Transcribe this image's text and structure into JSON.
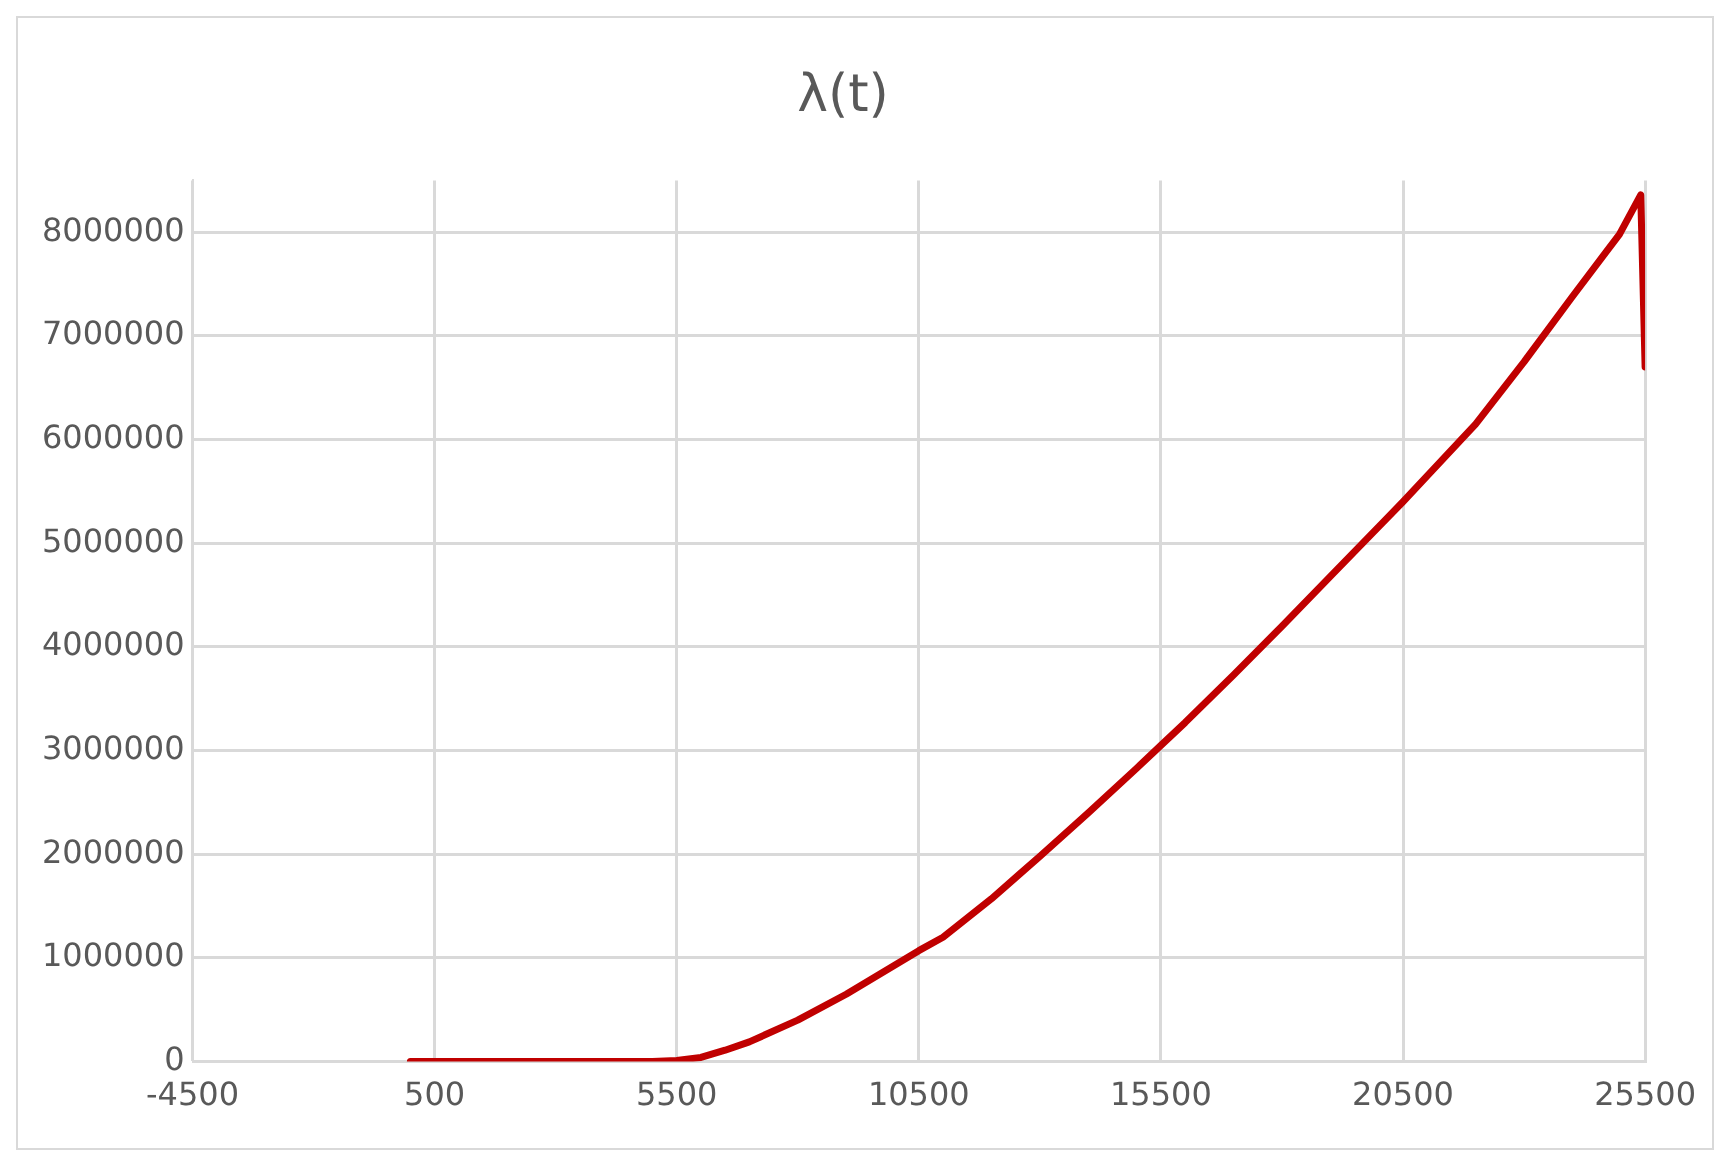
{
  "chart_data": {
    "type": "scatter",
    "title": "λ(t)",
    "series": [
      {
        "type": "line",
        "color": "#c00000",
        "x": [
          0,
          2000,
          4000,
          5000,
          5500,
          6000,
          6500,
          7000,
          8000,
          9000,
          10000,
          10500,
          11000,
          12000,
          13000,
          14000,
          15000,
          15500,
          16000,
          17000,
          18000,
          19000,
          20000,
          20500,
          21000,
          22000,
          23000,
          24000,
          24970,
          25410,
          25500
        ],
        "values": [
          0,
          0,
          0,
          0,
          10000,
          40000,
          110000,
          190000,
          400000,
          650000,
          930000,
          1070000,
          1200000,
          1570000,
          1980000,
          2400000,
          2830000,
          3050000,
          3270000,
          3730000,
          4200000,
          4680000,
          5160000,
          5400000,
          5650000,
          6150000,
          6750000,
          7380000,
          7980000,
          8360000,
          6700000
        ]
      }
    ],
    "xlim": [
      -4500,
      25500
    ],
    "xticks": [
      -4500,
      500,
      5500,
      10500,
      15500,
      20500,
      25500
    ],
    "ylim": [
      0,
      8500000
    ],
    "yticks": [
      0,
      1000000,
      2000000,
      3000000,
      4000000,
      5000000,
      6000000,
      7000000,
      8000000
    ],
    "grid": true,
    "legend": false,
    "marker": "none",
    "line_style": "solid"
  }
}
